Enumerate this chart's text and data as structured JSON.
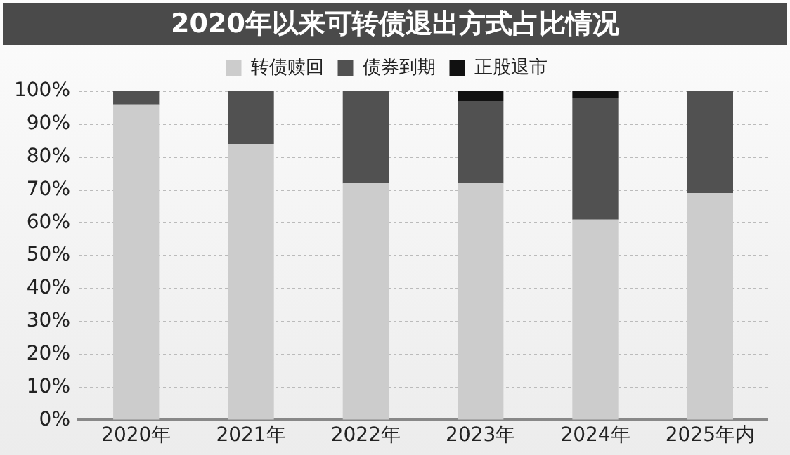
{
  "chart_data": {
    "type": "bar",
    "title": "2020年以来可转债退出方式占比情况",
    "stacked": true,
    "categories": [
      "2020年",
      "2021年",
      "2022年",
      "2023年",
      "2024年",
      "2025年内"
    ],
    "series": [
      {
        "name": "转债赎回",
        "color": "#cccccc",
        "values": [
          96,
          84,
          72,
          72,
          61,
          69
        ]
      },
      {
        "name": "债券到期",
        "color": "#515151",
        "values": [
          4,
          16,
          28,
          25,
          37,
          31
        ]
      },
      {
        "name": "正股退市",
        "color": "#111111",
        "values": [
          0,
          0,
          0,
          3,
          2,
          0
        ]
      }
    ],
    "ylim": [
      0,
      100
    ],
    "yticks": [
      {
        "value": 0,
        "label": "0%"
      },
      {
        "value": 10,
        "label": "10%"
      },
      {
        "value": 20,
        "label": "20%"
      },
      {
        "value": 30,
        "label": "30%"
      },
      {
        "value": 40,
        "label": "40%"
      },
      {
        "value": 50,
        "label": "50%"
      },
      {
        "value": 60,
        "label": "60%"
      },
      {
        "value": 70,
        "label": "70%"
      },
      {
        "value": 80,
        "label": "80%"
      },
      {
        "value": 90,
        "label": "90%"
      },
      {
        "value": 100,
        "label": "100%"
      }
    ],
    "grid": "y",
    "legend": "top"
  }
}
